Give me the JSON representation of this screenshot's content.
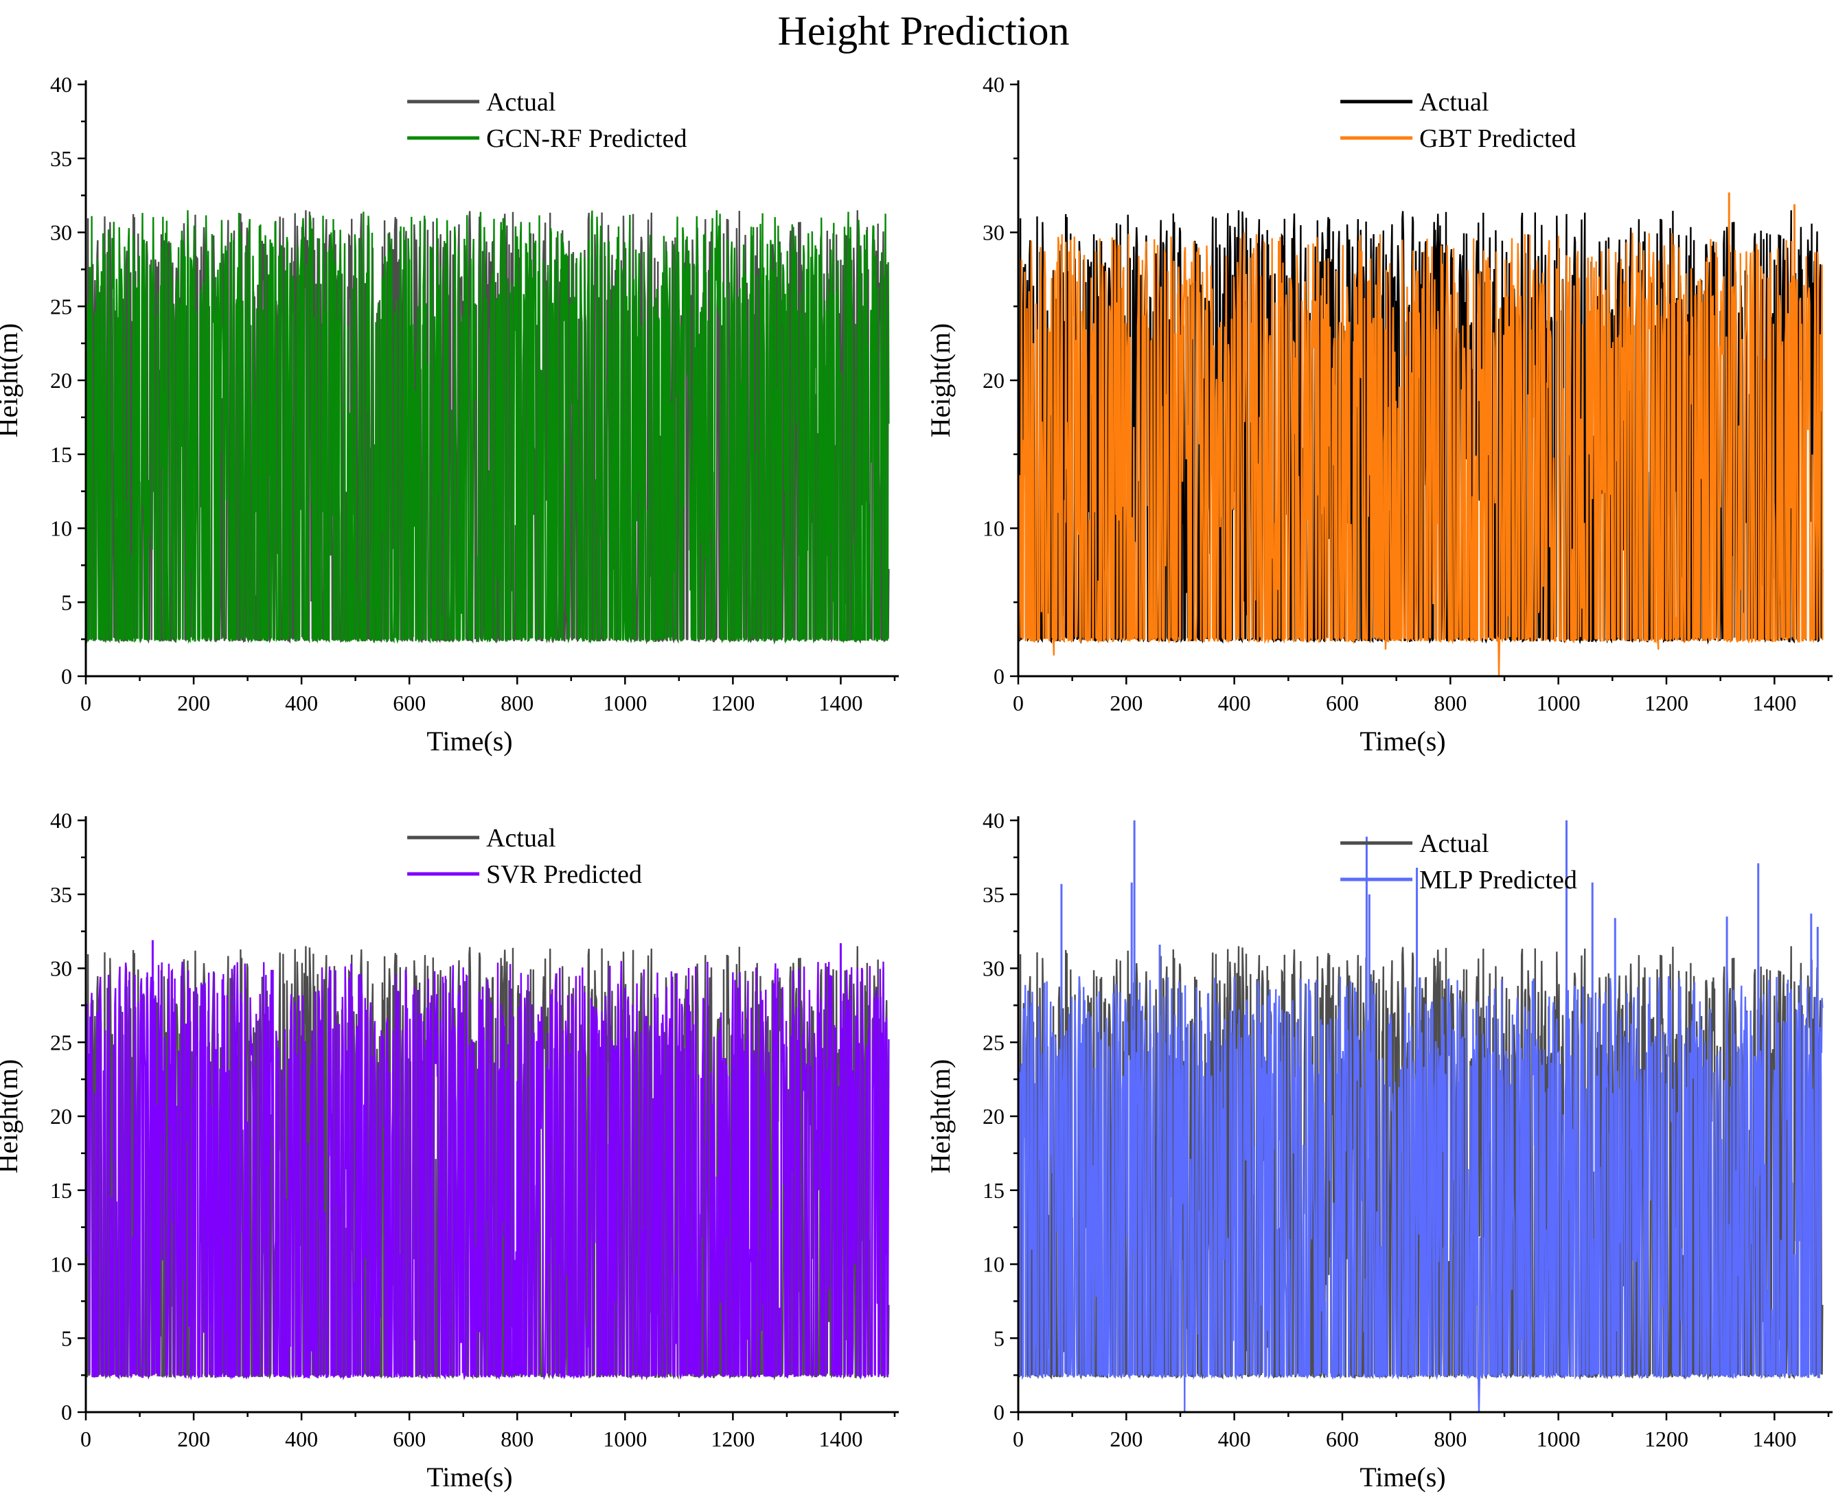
{
  "figure": {
    "title": "Height Prediction"
  },
  "chart_data": [
    {
      "type": "line",
      "xlabel": "Time(s)",
      "ylabel": "Height(m)",
      "xlim": [
        0,
        1500
      ],
      "ylim": [
        0,
        40
      ],
      "xticks": [
        0,
        200,
        400,
        600,
        800,
        1000,
        1200,
        1400
      ],
      "yticks": [
        0,
        5,
        10,
        15,
        20,
        25,
        30,
        35,
        40
      ],
      "legend_position": "top-center",
      "series": [
        {
          "name": "Actual",
          "color": "#4d4d4d",
          "n_points": 1490,
          "baseline": 2.5,
          "typical_peak": 31.5,
          "min": 1.6,
          "max": 31.8,
          "seed": 7,
          "drops": []
        },
        {
          "name": "GCN-RF Predicted",
          "color": "#078a07",
          "n_points": 1490,
          "baseline": 2.5,
          "typical_peak": 31.5,
          "min": 2.4,
          "max": 31.6,
          "seed": 11,
          "drops": []
        }
      ],
      "spikes": []
    },
    {
      "type": "line",
      "xlabel": "Time(s)",
      "ylabel": "Height(m)",
      "xlim": [
        0,
        1500
      ],
      "ylim": [
        0,
        40
      ],
      "xticks": [
        0,
        200,
        400,
        600,
        800,
        1000,
        1200,
        1400
      ],
      "yticks": [
        0,
        10,
        20,
        30,
        40
      ],
      "legend_position": "top-center",
      "series": [
        {
          "name": "Actual",
          "color": "#000000",
          "n_points": 1490,
          "baseline": 2.5,
          "typical_peak": 31.5,
          "min": 1.6,
          "max": 31.8,
          "seed": 7,
          "drops": []
        },
        {
          "name": "GBT Predicted",
          "color": "#ff7f0e",
          "n_points": 1490,
          "baseline": 2.5,
          "typical_peak": 30.0,
          "min": 0.0,
          "max": 32.7,
          "seed": 23,
          "drops": [
            [
              66,
              1.4
            ],
            [
              890,
              0.0
            ],
            [
              680,
              1.8
            ],
            [
              1185,
              1.8
            ]
          ]
        }
      ],
      "spikes": [
        [
          1316,
          32.7
        ],
        [
          1437,
          31.9
        ]
      ]
    },
    {
      "type": "line",
      "xlabel": "Time(s)",
      "ylabel": "Height(m)",
      "xlim": [
        0,
        1500
      ],
      "ylim": [
        0,
        40
      ],
      "xticks": [
        0,
        200,
        400,
        600,
        800,
        1000,
        1200,
        1400
      ],
      "yticks": [
        0,
        5,
        10,
        15,
        20,
        25,
        30,
        35,
        40
      ],
      "legend_position": "top-center",
      "series": [
        {
          "name": "Actual",
          "color": "#4d4d4d",
          "n_points": 1490,
          "baseline": 2.5,
          "typical_peak": 31.5,
          "min": 1.6,
          "max": 31.8,
          "seed": 7,
          "drops": []
        },
        {
          "name": "SVR Predicted",
          "color": "#7f00ff",
          "n_points": 1490,
          "baseline": 2.5,
          "typical_peak": 30.5,
          "min": 2.3,
          "max": 31.9,
          "seed": 31,
          "drops": []
        }
      ],
      "spikes": [
        [
          124,
          31.9
        ],
        [
          1400,
          31.7
        ]
      ]
    },
    {
      "type": "line",
      "xlabel": "Time(s)",
      "ylabel": "Height(m)",
      "xlim": [
        0,
        1500
      ],
      "ylim": [
        0,
        40
      ],
      "xticks": [
        0,
        200,
        400,
        600,
        800,
        1000,
        1200,
        1400
      ],
      "yticks": [
        0,
        5,
        10,
        15,
        20,
        25,
        30,
        35,
        40
      ],
      "legend_position": "top-center",
      "series": [
        {
          "name": "Actual",
          "color": "#4d4d4d",
          "n_points": 1490,
          "baseline": 2.5,
          "typical_peak": 31.5,
          "min": 1.6,
          "max": 31.8,
          "seed": 7,
          "drops": []
        },
        {
          "name": "MLP Predicted",
          "color": "#5b6cff",
          "n_points": 1490,
          "baseline": 2.5,
          "typical_peak": 29.5,
          "min": 0.0,
          "max": 40.0,
          "seed": 43,
          "drops": [
            [
              308,
              0.0
            ],
            [
              853,
              0.0
            ]
          ]
        }
      ],
      "spikes": [
        [
          80,
          35.7
        ],
        [
          210,
          35.8
        ],
        [
          215,
          40.0
        ],
        [
          262,
          31.6
        ],
        [
          645,
          38.9
        ],
        [
          650,
          35.0
        ],
        [
          738,
          36.8
        ],
        [
          1015,
          40.0
        ],
        [
          1063,
          35.8
        ],
        [
          1105,
          33.4
        ],
        [
          1312,
          33.5
        ],
        [
          1370,
          37.1
        ],
        [
          1468,
          33.7
        ],
        [
          1480,
          32.8
        ]
      ]
    }
  ]
}
